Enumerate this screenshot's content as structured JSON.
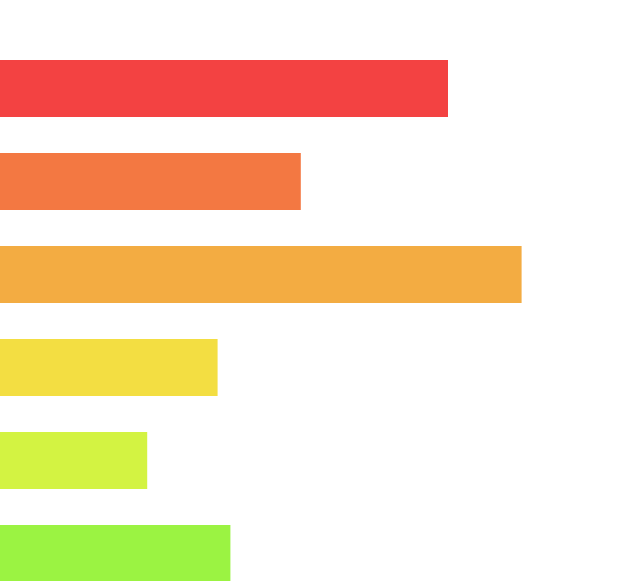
{
  "chart_data": {
    "type": "bar",
    "orientation": "horizontal",
    "title": "",
    "xlabel": "",
    "ylabel": "",
    "grid": false,
    "legend": "none",
    "xlim": [
      0,
      100
    ],
    "values": [
      70,
      47,
      81.5,
      34,
      23,
      36
    ],
    "colors": [
      "#F34242",
      "#F37842",
      "#F3AC42",
      "#F3DE42",
      "#D3F342",
      "#9BF342"
    ]
  }
}
